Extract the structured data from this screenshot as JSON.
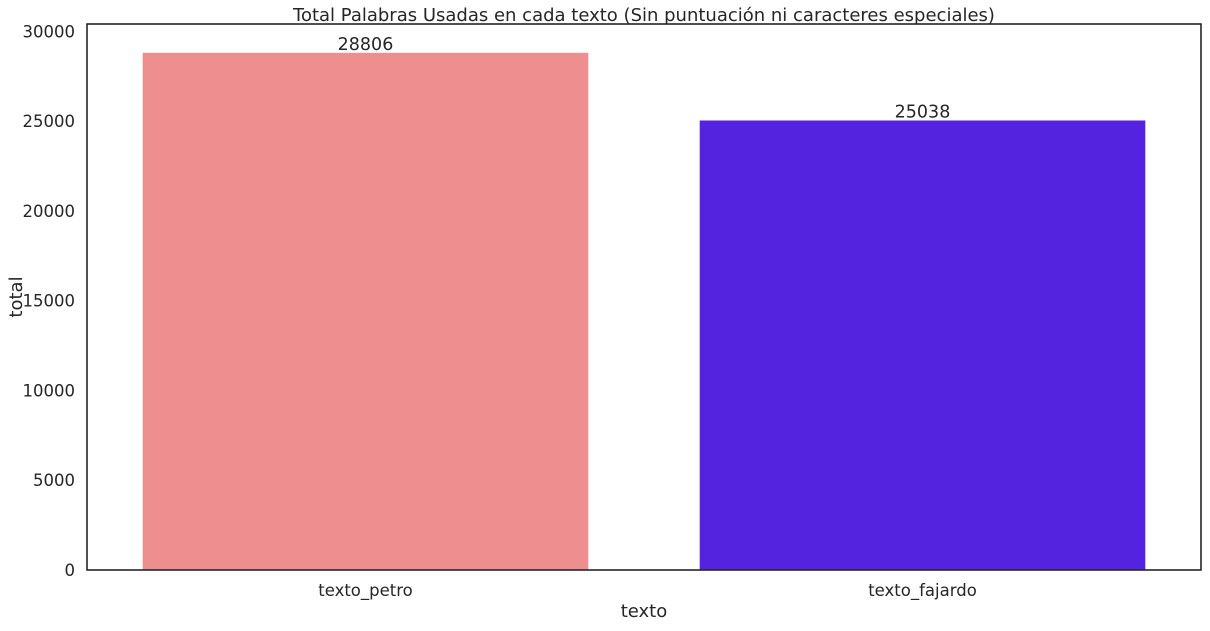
{
  "chart_data": {
    "type": "bar",
    "title": "Total Palabras Usadas en cada texto (Sin puntuación ni caracteres especiales)",
    "xlabel": "texto",
    "ylabel": "total",
    "categories": [
      "texto_petro",
      "texto_fajardo"
    ],
    "values": [
      28806,
      25038
    ],
    "data_labels": [
      "28806",
      "25038"
    ],
    "colors": [
      "#ef8e8f",
      "#5323e0"
    ],
    "ylim": [
      0,
      30412
    ],
    "yticks": [
      0,
      5000,
      10000,
      15000,
      20000,
      25000,
      30000
    ],
    "ytick_labels": [
      "0",
      "5000",
      "10000",
      "15000",
      "20000",
      "25000",
      "30000"
    ],
    "grid": false,
    "legend": "none"
  }
}
